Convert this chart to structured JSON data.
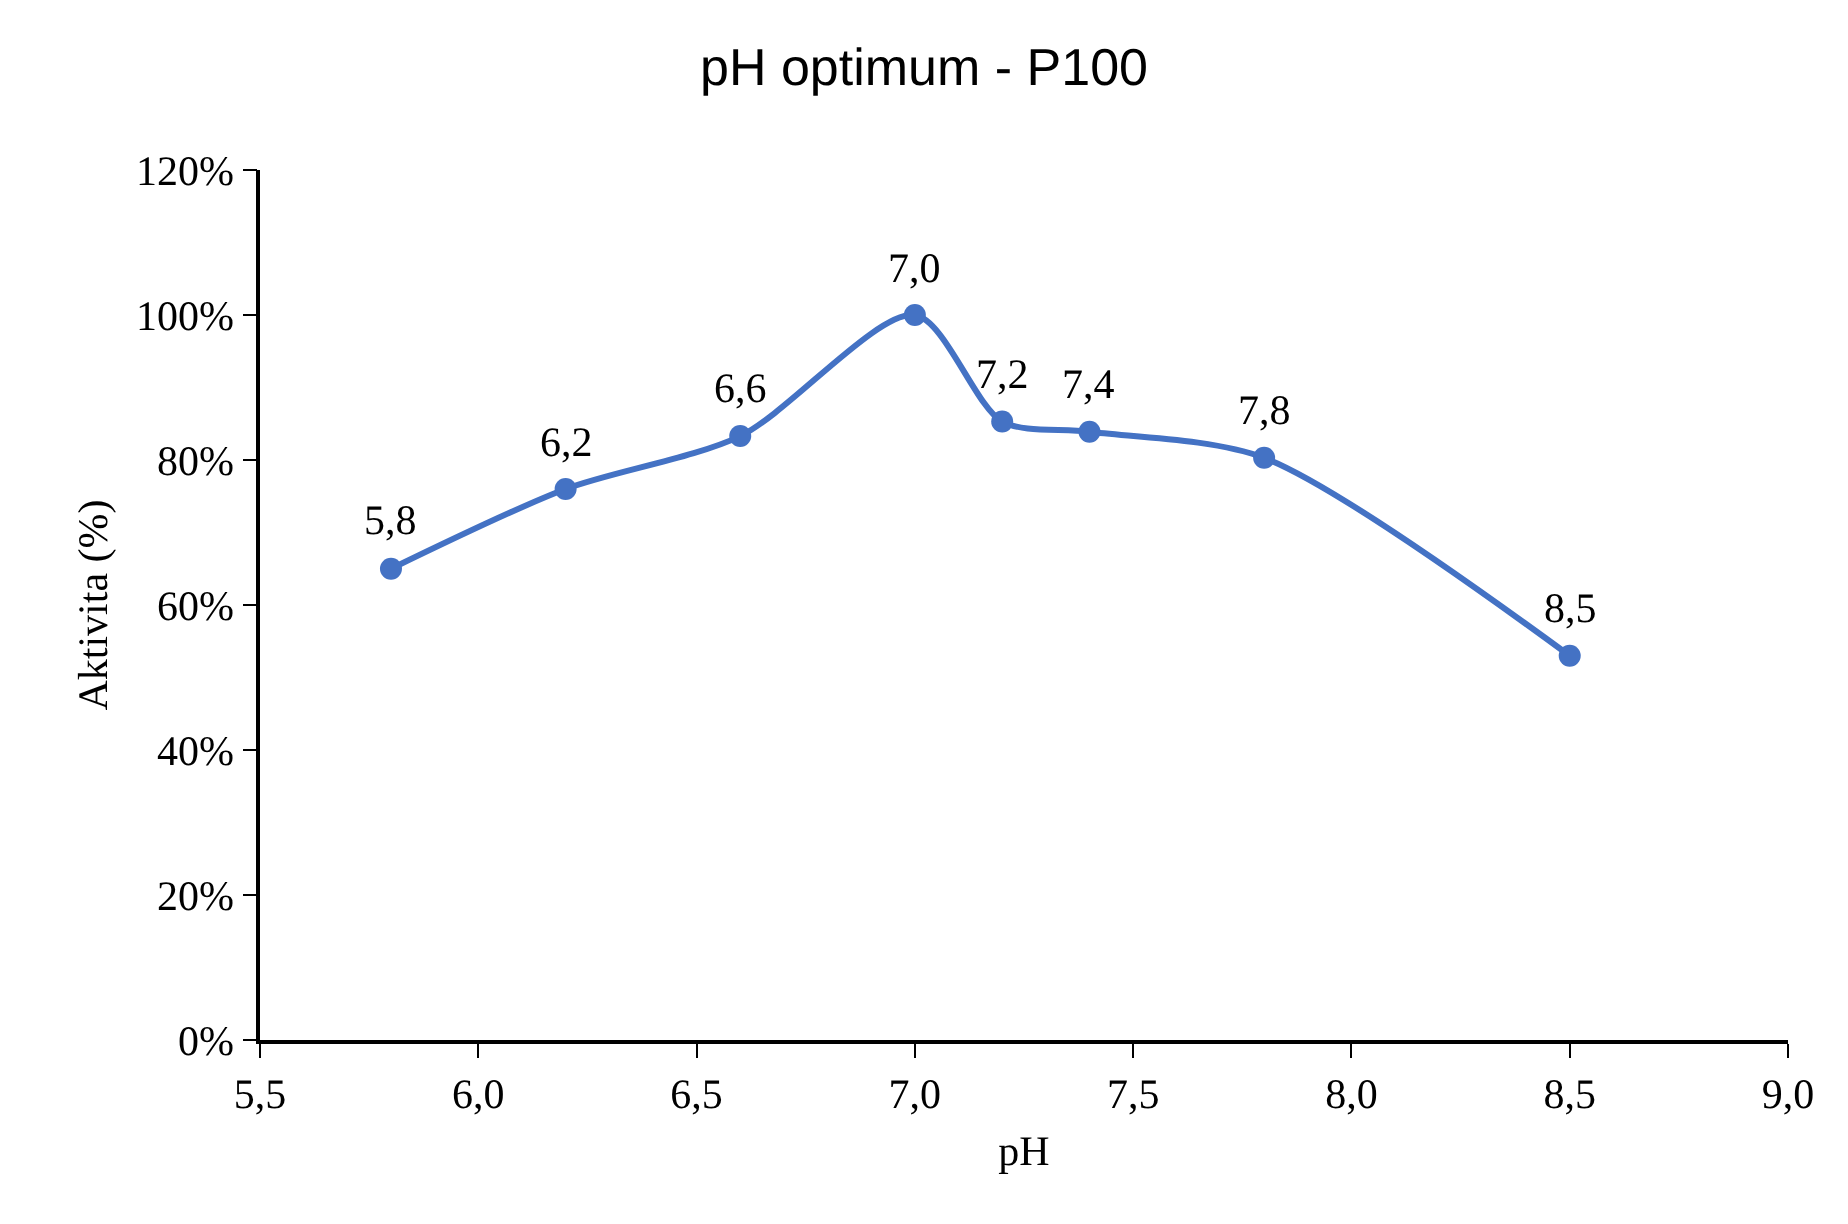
{
  "chart_data": {
    "type": "line",
    "title": "pH optimum - P100",
    "xlabel": "pH",
    "ylabel": "Aktivita (%)",
    "x": [
      5.8,
      6.2,
      6.6,
      7.0,
      7.2,
      7.4,
      7.8,
      8.5
    ],
    "series": [
      {
        "color": "#4472c4",
        "values": [
          65,
          76,
          83.3,
          100,
          85.3,
          83.9,
          80.3,
          53
        ]
      }
    ],
    "xlim": [
      5.5,
      9.0
    ],
    "xticks": [
      {
        "value": 5.5,
        "label": "5,5"
      },
      {
        "value": 6.0,
        "label": "6,0"
      },
      {
        "value": 6.5,
        "label": "6,5"
      },
      {
        "value": 7.0,
        "label": "7,0"
      },
      {
        "value": 7.5,
        "label": "7,5"
      },
      {
        "value": 8.0,
        "label": "8,0"
      },
      {
        "value": 8.5,
        "label": "8,5"
      },
      {
        "value": 9.0,
        "label": "9,0"
      }
    ],
    "ylim": [
      0,
      120
    ],
    "yticks": [
      {
        "value": 0,
        "label": "0%"
      },
      {
        "value": 20,
        "label": "20%"
      },
      {
        "value": 40,
        "label": "40%"
      },
      {
        "value": 60,
        "label": "60%"
      },
      {
        "value": 80,
        "label": "80%"
      },
      {
        "value": 100,
        "label": "100%"
      },
      {
        "value": 120,
        "label": "120%"
      }
    ],
    "annotations": [
      {
        "text": "5,8",
        "x": 5.8,
        "y": 65
      },
      {
        "text": "6,2",
        "x": 6.2,
        "y": 76
      },
      {
        "text": "6,6",
        "x": 6.6,
        "y": 83.3
      },
      {
        "text": "7,0",
        "x": 7.0,
        "y": 100
      },
      {
        "text": "7,2",
        "x": 7.2,
        "y": 85.3
      },
      {
        "text": "7,4",
        "x": 7.4,
        "y": 83.9
      },
      {
        "text": "7,8",
        "x": 7.8,
        "y": 80.3
      },
      {
        "text": "8,5",
        "x": 8.5,
        "y": 53
      }
    ],
    "grid": false,
    "marker": "circle",
    "line_style": "solid"
  }
}
